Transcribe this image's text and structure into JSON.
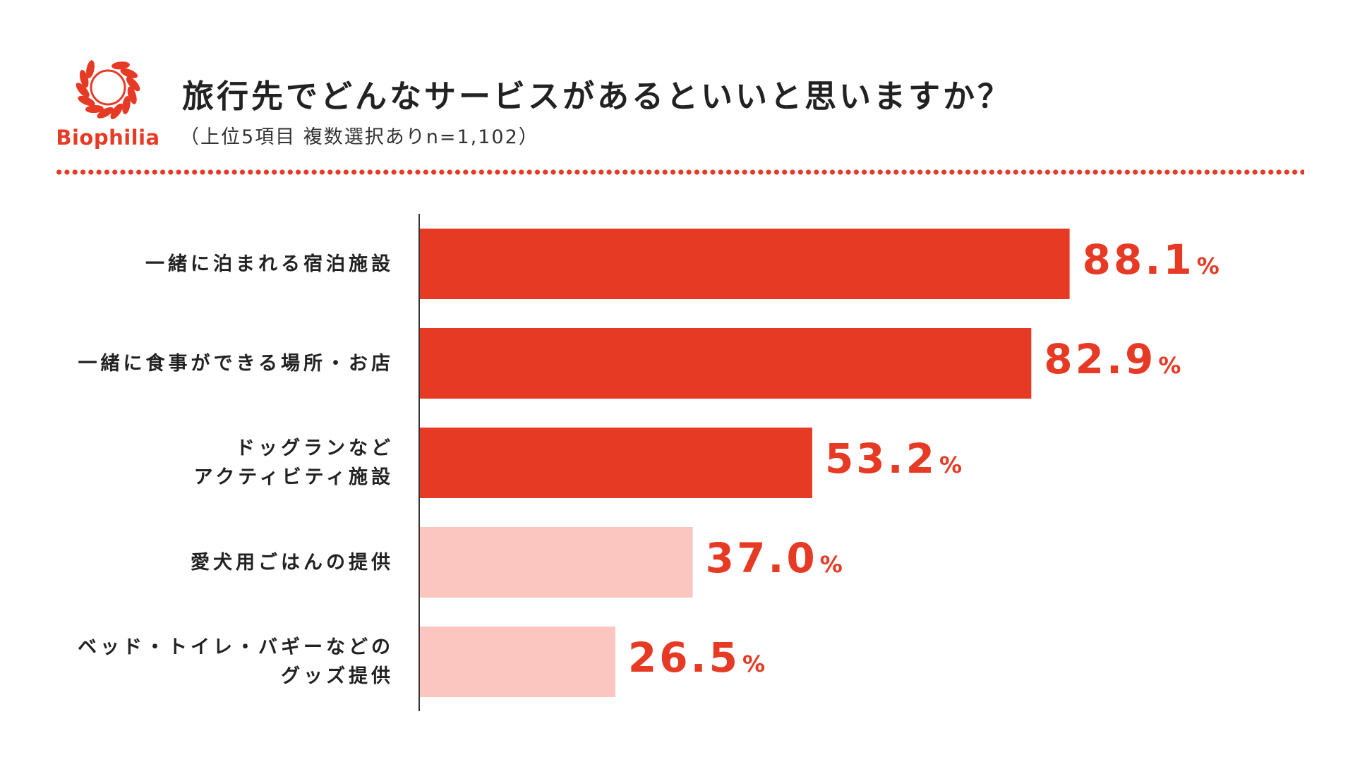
{
  "brand": {
    "name": "Biophilia",
    "color": "#e63a25",
    "icon": "laurel-wreath-icon"
  },
  "title": "旅行先でどんなサービスがあるといいと思いますか？",
  "subtitle": "（上位5項目 複数選択ありn=1,102）",
  "chart_data": {
    "type": "bar",
    "orientation": "horizontal",
    "unit": "%",
    "categories": [
      [
        "一緒に泊まれる宿泊施設"
      ],
      [
        "一緒に食事ができる場所・お店"
      ],
      [
        "ドッグランなど",
        "アクティビティ施設"
      ],
      [
        "愛犬用ごはんの提供"
      ],
      [
        "ベッド・トイレ・バギーなどの",
        "グッズ提供"
      ]
    ],
    "values": [
      88.1,
      82.9,
      53.2,
      37.0,
      26.5
    ],
    "value_labels": [
      "88.1",
      "82.9",
      "53.2",
      "37.0",
      "26.5"
    ],
    "bar_colors": [
      "#e63a25",
      "#e63a25",
      "#e63a25",
      "#fcc6c0",
      "#fcc6c0"
    ],
    "label_color": "#e63a25",
    "xlim": [
      0,
      100
    ],
    "grid": false,
    "legend": "none"
  }
}
